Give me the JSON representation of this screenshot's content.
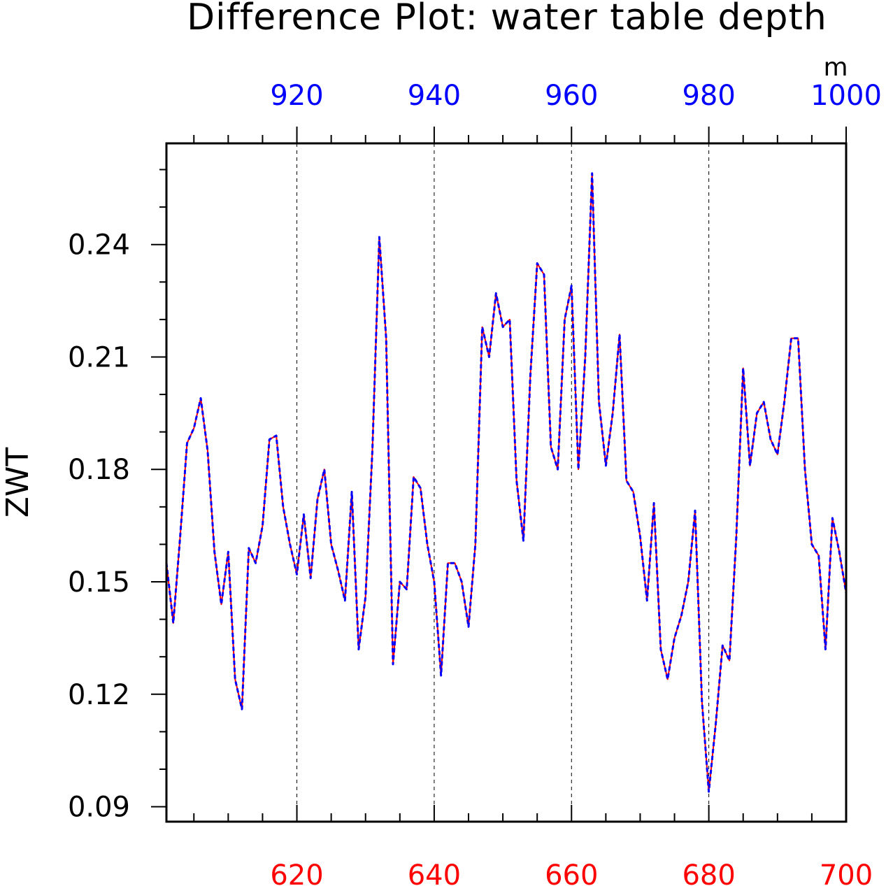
{
  "chart_data": {
    "type": "line",
    "title": "Difference Plot: water table depth",
    "ylabel": "ZWT",
    "top_axis_unit": "m",
    "bottom_axis": {
      "range": [
        601,
        700
      ],
      "ticks": [
        620,
        640,
        660,
        680,
        700
      ],
      "minor_step": 5,
      "color": "#ff0000"
    },
    "top_axis": {
      "range": [
        901,
        1000
      ],
      "ticks": [
        920,
        940,
        960,
        980,
        1000
      ],
      "minor_step": 5,
      "color": "#0000ff"
    },
    "ylim": [
      0.086,
      0.267
    ],
    "yticks": [
      0.09,
      0.12,
      0.15,
      0.18,
      0.21,
      0.24
    ],
    "ytick_labels": [
      "0.09",
      "0.12",
      "0.15",
      "0.18",
      "0.21",
      "0.24"
    ],
    "y_minor_step": 0.01,
    "grid": "vertical dashed at major x ticks",
    "x": [
      601,
      602,
      603,
      604,
      605,
      606,
      607,
      608,
      609,
      610,
      611,
      612,
      613,
      614,
      615,
      616,
      617,
      618,
      619,
      620,
      621,
      622,
      623,
      624,
      625,
      626,
      627,
      628,
      629,
      630,
      631,
      632,
      633,
      634,
      635,
      636,
      637,
      638,
      639,
      640,
      641,
      642,
      643,
      644,
      645,
      646,
      647,
      648,
      649,
      650,
      651,
      652,
      653,
      654,
      655,
      656,
      657,
      658,
      659,
      660,
      661,
      662,
      663,
      664,
      665,
      666,
      667,
      668,
      669,
      670,
      671,
      672,
      673,
      674,
      675,
      676,
      677,
      678,
      679,
      680,
      681,
      682,
      683,
      684,
      685,
      686,
      687,
      688,
      689,
      690,
      691,
      692,
      693,
      694,
      695,
      696,
      697,
      698,
      699,
      700
    ],
    "series": [
      {
        "color": "#ff0000",
        "dash": "solid",
        "values": [
          0.155,
          0.139,
          0.162,
          0.187,
          0.191,
          0.199,
          0.185,
          0.158,
          0.144,
          0.158,
          0.124,
          0.116,
          0.159,
          0.155,
          0.165,
          0.188,
          0.189,
          0.17,
          0.16,
          0.152,
          0.168,
          0.151,
          0.172,
          0.18,
          0.16,
          0.153,
          0.145,
          0.174,
          0.132,
          0.146,
          0.185,
          0.242,
          0.215,
          0.128,
          0.15,
          0.148,
          0.178,
          0.175,
          0.16,
          0.15,
          0.125,
          0.155,
          0.155,
          0.15,
          0.138,
          0.16,
          0.218,
          0.21,
          0.227,
          0.218,
          0.22,
          0.177,
          0.161,
          0.205,
          0.235,
          0.232,
          0.186,
          0.18,
          0.22,
          0.229,
          0.18,
          0.21,
          0.259,
          0.198,
          0.181,
          0.195,
          0.216,
          0.177,
          0.174,
          0.162,
          0.145,
          0.171,
          0.132,
          0.124,
          0.135,
          0.141,
          0.15,
          0.169,
          0.118,
          0.094,
          0.112,
          0.133,
          0.129,
          0.162,
          0.207,
          0.181,
          0.195,
          0.198,
          0.188,
          0.184,
          0.198,
          0.215,
          0.215,
          0.18,
          0.16,
          0.157,
          0.132,
          0.167,
          0.158,
          0.147
        ]
      },
      {
        "color": "#0000ff",
        "dash": "dashed",
        "values": [
          0.155,
          0.139,
          0.162,
          0.187,
          0.191,
          0.199,
          0.185,
          0.158,
          0.144,
          0.158,
          0.124,
          0.116,
          0.159,
          0.155,
          0.165,
          0.188,
          0.189,
          0.17,
          0.16,
          0.152,
          0.168,
          0.151,
          0.172,
          0.18,
          0.16,
          0.153,
          0.145,
          0.174,
          0.132,
          0.146,
          0.185,
          0.242,
          0.215,
          0.128,
          0.15,
          0.148,
          0.178,
          0.175,
          0.16,
          0.15,
          0.125,
          0.155,
          0.155,
          0.15,
          0.138,
          0.16,
          0.218,
          0.21,
          0.227,
          0.218,
          0.22,
          0.177,
          0.161,
          0.205,
          0.235,
          0.232,
          0.186,
          0.18,
          0.22,
          0.229,
          0.18,
          0.21,
          0.259,
          0.198,
          0.181,
          0.195,
          0.216,
          0.177,
          0.174,
          0.162,
          0.145,
          0.171,
          0.132,
          0.124,
          0.135,
          0.141,
          0.15,
          0.169,
          0.118,
          0.094,
          0.112,
          0.133,
          0.129,
          0.162,
          0.207,
          0.181,
          0.195,
          0.198,
          0.188,
          0.184,
          0.198,
          0.215,
          0.215,
          0.18,
          0.16,
          0.157,
          0.132,
          0.167,
          0.158,
          0.147
        ]
      }
    ]
  }
}
